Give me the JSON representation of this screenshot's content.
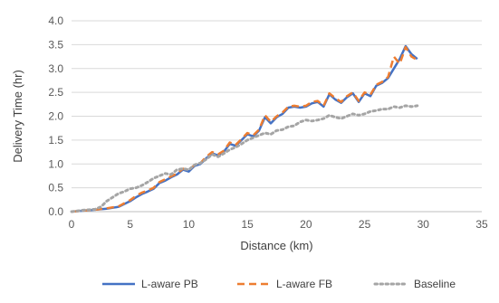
{
  "chart_data": {
    "type": "line",
    "title": "",
    "xlabel": "Distance (km)",
    "ylabel": "Delivery Time (hr)",
    "xlim": [
      0,
      35
    ],
    "ylim": [
      0,
      4.0
    ],
    "x_ticks": [
      "0",
      "5",
      "10",
      "15",
      "20",
      "25",
      "30",
      "35"
    ],
    "y_ticks": [
      "0.0",
      "0.5",
      "1.0",
      "1.5",
      "2.0",
      "2.5",
      "3.0",
      "3.5",
      "4.0"
    ],
    "grid": "horizontal",
    "legend_position": "bottom",
    "series": [
      {
        "name": "L-aware PB",
        "color": "#4472C4",
        "style": "solid",
        "points": [
          [
            0,
            0.0
          ],
          [
            1,
            0.02
          ],
          [
            2,
            0.04
          ],
          [
            3,
            0.06
          ],
          [
            4,
            0.1
          ],
          [
            5,
            0.22
          ],
          [
            5.5,
            0.3
          ],
          [
            6,
            0.37
          ],
          [
            6.5,
            0.42
          ],
          [
            7,
            0.48
          ],
          [
            7.5,
            0.6
          ],
          [
            8,
            0.65
          ],
          [
            8.5,
            0.72
          ],
          [
            9,
            0.78
          ],
          [
            9.5,
            0.88
          ],
          [
            10,
            0.84
          ],
          [
            10.5,
            0.96
          ],
          [
            11,
            1.0
          ],
          [
            11.5,
            1.12
          ],
          [
            12,
            1.22
          ],
          [
            12.5,
            1.18
          ],
          [
            13,
            1.26
          ],
          [
            13.5,
            1.42
          ],
          [
            14,
            1.38
          ],
          [
            14.5,
            1.5
          ],
          [
            15,
            1.62
          ],
          [
            15.5,
            1.58
          ],
          [
            16,
            1.7
          ],
          [
            16.5,
            1.98
          ],
          [
            17,
            1.85
          ],
          [
            17.5,
            1.98
          ],
          [
            18,
            2.05
          ],
          [
            18.5,
            2.18
          ],
          [
            19,
            2.2
          ],
          [
            19.5,
            2.18
          ],
          [
            20,
            2.2
          ],
          [
            20.5,
            2.27
          ],
          [
            21,
            2.3
          ],
          [
            21.5,
            2.2
          ],
          [
            22,
            2.46
          ],
          [
            22.5,
            2.35
          ],
          [
            23,
            2.28
          ],
          [
            23.5,
            2.4
          ],
          [
            24,
            2.48
          ],
          [
            24.5,
            2.3
          ],
          [
            25,
            2.48
          ],
          [
            25.5,
            2.42
          ],
          [
            26,
            2.64
          ],
          [
            26.5,
            2.7
          ],
          [
            27,
            2.8
          ],
          [
            27.5,
            3.0
          ],
          [
            28,
            3.2
          ],
          [
            28.5,
            3.47
          ],
          [
            29,
            3.3
          ],
          [
            29.5,
            3.2
          ]
        ]
      },
      {
        "name": "L-aware FB",
        "color": "#ED7D31",
        "style": "dashed",
        "points": [
          [
            0,
            0.0
          ],
          [
            1,
            0.02
          ],
          [
            2,
            0.04
          ],
          [
            3,
            0.07
          ],
          [
            4,
            0.11
          ],
          [
            5,
            0.24
          ],
          [
            5.5,
            0.33
          ],
          [
            6,
            0.4
          ],
          [
            6.5,
            0.44
          ],
          [
            7,
            0.5
          ],
          [
            7.5,
            0.62
          ],
          [
            8,
            0.68
          ],
          [
            8.5,
            0.74
          ],
          [
            9,
            0.8
          ],
          [
            9.5,
            0.9
          ],
          [
            10,
            0.87
          ],
          [
            10.5,
            0.98
          ],
          [
            11,
            1.02
          ],
          [
            11.5,
            1.15
          ],
          [
            12,
            1.25
          ],
          [
            12.5,
            1.2
          ],
          [
            13,
            1.28
          ],
          [
            13.5,
            1.45
          ],
          [
            14,
            1.4
          ],
          [
            14.5,
            1.52
          ],
          [
            15,
            1.65
          ],
          [
            15.5,
            1.6
          ],
          [
            16,
            1.72
          ],
          [
            16.5,
            2.02
          ],
          [
            17,
            1.88
          ],
          [
            17.5,
            2.0
          ],
          [
            18,
            2.08
          ],
          [
            18.5,
            2.2
          ],
          [
            19,
            2.22
          ],
          [
            19.5,
            2.2
          ],
          [
            20,
            2.22
          ],
          [
            20.5,
            2.3
          ],
          [
            21,
            2.32
          ],
          [
            21.5,
            2.22
          ],
          [
            22,
            2.48
          ],
          [
            22.5,
            2.38
          ],
          [
            23,
            2.3
          ],
          [
            23.5,
            2.42
          ],
          [
            24,
            2.5
          ],
          [
            24.5,
            2.32
          ],
          [
            25,
            2.5
          ],
          [
            25.5,
            2.45
          ],
          [
            26,
            2.66
          ],
          [
            26.5,
            2.72
          ],
          [
            27,
            2.82
          ],
          [
            27.5,
            3.25
          ],
          [
            28,
            3.1
          ],
          [
            28.5,
            3.45
          ],
          [
            29,
            3.25
          ],
          [
            29.5,
            3.18
          ]
        ]
      },
      {
        "name": "Baseline",
        "color": "#A5A5A5",
        "style": "dotted",
        "points": [
          [
            0,
            0.0
          ],
          [
            1,
            0.03
          ],
          [
            2,
            0.05
          ],
          [
            2.5,
            0.1
          ],
          [
            3,
            0.22
          ],
          [
            3.5,
            0.3
          ],
          [
            4,
            0.38
          ],
          [
            4.5,
            0.42
          ],
          [
            5,
            0.48
          ],
          [
            5.5,
            0.5
          ],
          [
            6,
            0.55
          ],
          [
            6.5,
            0.62
          ],
          [
            7,
            0.7
          ],
          [
            7.5,
            0.75
          ],
          [
            8,
            0.8
          ],
          [
            8.5,
            0.78
          ],
          [
            9,
            0.88
          ],
          [
            9.5,
            0.9
          ],
          [
            10,
            0.88
          ],
          [
            10.5,
            0.98
          ],
          [
            11,
            1.02
          ],
          [
            11.5,
            1.1
          ],
          [
            12,
            1.2
          ],
          [
            12.5,
            1.15
          ],
          [
            13,
            1.22
          ],
          [
            13.5,
            1.3
          ],
          [
            14,
            1.35
          ],
          [
            14.5,
            1.42
          ],
          [
            15,
            1.5
          ],
          [
            15.5,
            1.55
          ],
          [
            16,
            1.6
          ],
          [
            16.5,
            1.65
          ],
          [
            17,
            1.62
          ],
          [
            17.5,
            1.7
          ],
          [
            18,
            1.72
          ],
          [
            18.5,
            1.78
          ],
          [
            19,
            1.8
          ],
          [
            19.5,
            1.88
          ],
          [
            20,
            1.92
          ],
          [
            20.5,
            1.9
          ],
          [
            21,
            1.92
          ],
          [
            21.5,
            1.95
          ],
          [
            22,
            2.02
          ],
          [
            22.5,
            1.98
          ],
          [
            23,
            1.95
          ],
          [
            23.5,
            2.0
          ],
          [
            24,
            2.05
          ],
          [
            24.5,
            2.02
          ],
          [
            25,
            2.05
          ],
          [
            25.5,
            2.1
          ],
          [
            26,
            2.12
          ],
          [
            26.5,
            2.15
          ],
          [
            27,
            2.15
          ],
          [
            27.5,
            2.2
          ],
          [
            28,
            2.18
          ],
          [
            28.5,
            2.22
          ],
          [
            29,
            2.2
          ],
          [
            29.5,
            2.22
          ]
        ]
      }
    ]
  }
}
